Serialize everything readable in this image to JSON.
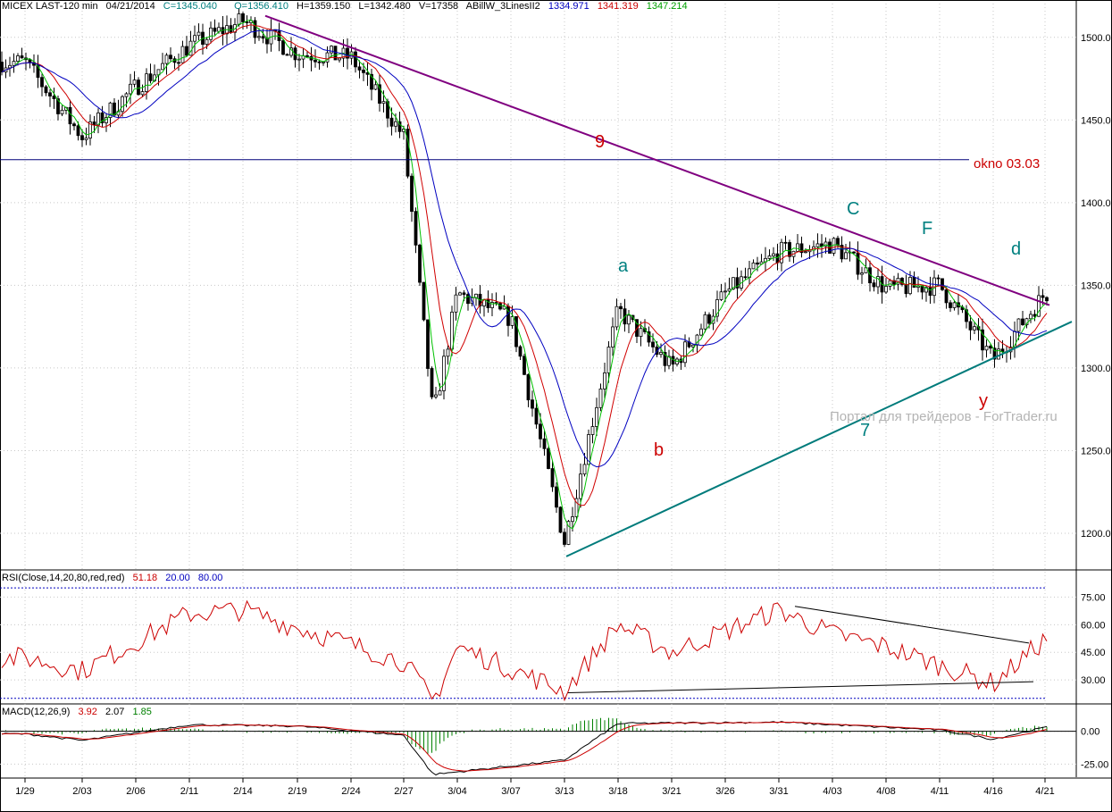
{
  "header": {
    "instrument": "MICEX LAST-120 min",
    "date": "04/21/2014",
    "close": "C=1345.040",
    "open": "O=1356.410",
    "high": "H=1359.150",
    "low": "L=1342.480",
    "volume": "V=17358",
    "indicator": "ABillW_3LinesII2",
    "ind_v1": "1334.971",
    "ind_v2": "1341.319",
    "ind_v3": "1347.214"
  },
  "rsi_header": {
    "label": "RSI(Close,14,20,80,red,red)",
    "v1": "51.18",
    "v2": "20.00",
    "v3": "80.00"
  },
  "macd_header": {
    "label": "MACD(12,26,9)",
    "v1": "3.92",
    "v2": "2.07",
    "v3": "1.85"
  },
  "annotations": {
    "wave_9": "9",
    "wave_7": "7",
    "label_a": "a",
    "label_b": "b",
    "label_C": "C",
    "label_F": "F",
    "label_d": "d",
    "label_y": "y",
    "okno": "okno 03.03",
    "watermark": "Портал для трейдеров - ForTrader.ru"
  },
  "colors": {
    "bg": "#ffffff",
    "grid": "#c8c8c8",
    "candle": "#000000",
    "ma_fast": "#00c000",
    "ma_mid": "#d00000",
    "ma_slow": "#0000c0",
    "trend_down": "#800080",
    "trend_up": "#007b7b",
    "rsi": "#cc0000",
    "macd_line": "#000000",
    "signal_line": "#cc0000",
    "histogram": "#008000",
    "header_close": "#008080",
    "header_open": "#008080",
    "label_teal": "#008080",
    "label_red": "#cc0000"
  },
  "chart_data": [
    {
      "type": "candlestick",
      "title": "MICEX LAST-120 min",
      "ylim": [
        1180,
        1515
      ],
      "y_ticks": [
        "1500.00",
        "1450.00",
        "1400.00",
        "1350.00",
        "1300.00",
        "1250.00",
        "1200.00"
      ],
      "x_tick_labels": [
        "1/29",
        "2/03",
        "2/06",
        "2/11",
        "2/14",
        "2/19",
        "2/24",
        "2/27",
        "3/04",
        "3/07",
        "3/13",
        "3/18",
        "3/21",
        "3/26",
        "3/31",
        "4/03",
        "4/08",
        "4/11",
        "4/16",
        "4/21"
      ],
      "key_prices": [
        {
          "x": "1/29",
          "y": 1485
        },
        {
          "x": "2/03",
          "y": 1440
        },
        {
          "x": "2/06",
          "y": 1470
        },
        {
          "x": "2/11",
          "y": 1495
        },
        {
          "x": "2/14",
          "y": 1510
        },
        {
          "x": "2/19",
          "y": 1490
        },
        {
          "x": "2/24",
          "y": 1488
        },
        {
          "x": "2/27",
          "y": 1440
        },
        {
          "x": "3/03",
          "y": 1270
        },
        {
          "x": "3/04",
          "y": 1345
        },
        {
          "x": "3/07",
          "y": 1330
        },
        {
          "x": "3/13",
          "y": 1195
        },
        {
          "x": "3/18",
          "y": 1335
        },
        {
          "x": "3/21",
          "y": 1300
        },
        {
          "x": "3/26",
          "y": 1345
        },
        {
          "x": "3/31",
          "y": 1370
        },
        {
          "x": "4/03",
          "y": 1375
        },
        {
          "x": "4/08",
          "y": 1348
        },
        {
          "x": "4/11",
          "y": 1350
        },
        {
          "x": "4/16",
          "y": 1305
        },
        {
          "x": "4/21",
          "y": 1345
        }
      ],
      "horizontal_line": {
        "y": 1426,
        "label": "okno 03.03"
      },
      "trendline_9": [
        {
          "x": "2/14",
          "y": 1513
        },
        {
          "x": "4/21",
          "y": 1338
        }
      ],
      "trendline_7": [
        {
          "x": "3/13",
          "y": 1186
        },
        {
          "x": "4/21",
          "y": 1328
        }
      ]
    },
    {
      "type": "line",
      "title": "RSI(Close,14,20,80,red,red)",
      "ylim": [
        15,
        82
      ],
      "y_ticks": [
        "75.00",
        "60.00",
        "45.00",
        "30.00"
      ],
      "levels": [
        20,
        80
      ],
      "key_values": [
        {
          "x": "1/29",
          "y": 42
        },
        {
          "x": "2/03",
          "y": 35
        },
        {
          "x": "2/11",
          "y": 66
        },
        {
          "x": "2/14",
          "y": 68
        },
        {
          "x": "2/27",
          "y": 40
        },
        {
          "x": "3/03",
          "y": 18
        },
        {
          "x": "3/04",
          "y": 48
        },
        {
          "x": "3/13",
          "y": 24
        },
        {
          "x": "3/18",
          "y": 60
        },
        {
          "x": "3/21",
          "y": 45
        },
        {
          "x": "3/31",
          "y": 68
        },
        {
          "x": "4/03",
          "y": 55
        },
        {
          "x": "4/08",
          "y": 48
        },
        {
          "x": "4/16",
          "y": 28
        },
        {
          "x": "4/21",
          "y": 52
        }
      ]
    },
    {
      "type": "line",
      "title": "MACD(12,26,9)",
      "ylim": [
        -35,
        10
      ],
      "y_ticks": [
        "0.00",
        "-25.00"
      ],
      "key_values": [
        {
          "x": "1/29",
          "y": -2
        },
        {
          "x": "2/03",
          "y": -7
        },
        {
          "x": "2/11",
          "y": 5
        },
        {
          "x": "2/19",
          "y": 4
        },
        {
          "x": "2/27",
          "y": -3
        },
        {
          "x": "3/03",
          "y": -33
        },
        {
          "x": "3/13",
          "y": -22
        },
        {
          "x": "3/18",
          "y": 6
        },
        {
          "x": "3/31",
          "y": 7
        },
        {
          "x": "4/11",
          "y": 1
        },
        {
          "x": "4/16",
          "y": -6
        },
        {
          "x": "4/21",
          "y": 3
        }
      ]
    }
  ]
}
